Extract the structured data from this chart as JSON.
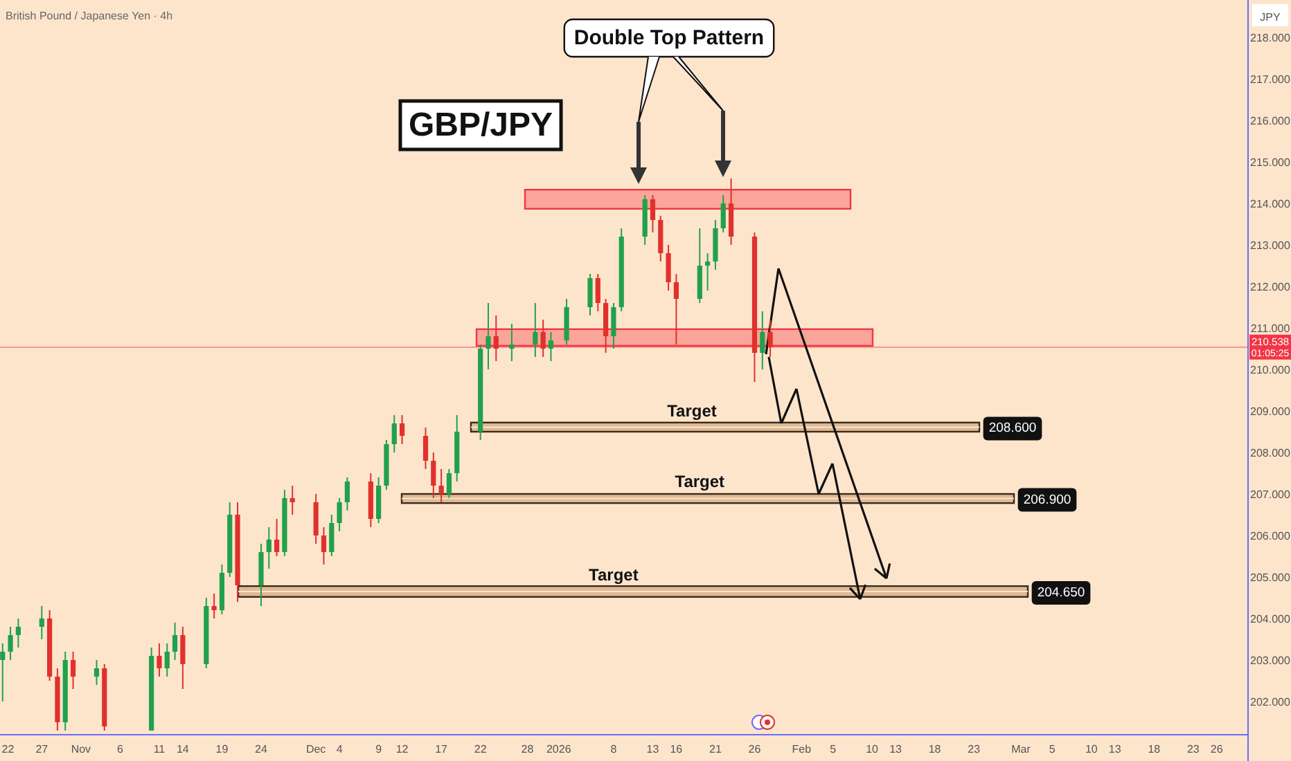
{
  "chart_data": {
    "type": "candlestick",
    "title": "British Pound / Japanese Yen · 4h",
    "ylabel": "JPY",
    "x": [
      "2025-10-22",
      "2025-10-23",
      "2025-10-24",
      "2025-10-27",
      "2025-10-28",
      "2025-10-29",
      "2025-10-30",
      "2025-10-31",
      "2025-11-03",
      "2025-11-04",
      "2025-11-10",
      "2025-11-11",
      "2025-11-12",
      "2025-11-13",
      "2025-11-14",
      "2025-11-17",
      "2025-11-18",
      "2025-11-19",
      "2025-11-20",
      "2025-11-21",
      "2025-11-24",
      "2025-11-25",
      "2025-11-26",
      "2025-11-27",
      "2025-11-28",
      "2025-12-01",
      "2025-12-02",
      "2025-12-03",
      "2025-12-04",
      "2025-12-05",
      "2025-12-08",
      "2025-12-09",
      "2025-12-10",
      "2025-12-11",
      "2025-12-12",
      "2025-12-15",
      "2025-12-16",
      "2025-12-17",
      "2025-12-18",
      "2025-12-19",
      "2025-12-22",
      "2025-12-23",
      "2025-12-24",
      "2025-12-26",
      "2025-12-29",
      "2025-12-30",
      "2025-12-31",
      "2026-01-02",
      "2026-01-05",
      "2026-01-06",
      "2026-01-07",
      "2026-01-08",
      "2026-01-09",
      "2026-01-12",
      "2026-01-13",
      "2026-01-14",
      "2026-01-15",
      "2026-01-16",
      "2026-01-19",
      "2026-01-20",
      "2026-01-21",
      "2026-01-22",
      "2026-01-23",
      "2026-01-26",
      "2026-01-27",
      "2026-01-28"
    ],
    "ohlc": [
      [
        203.0,
        203.4,
        202.0,
        203.2
      ],
      [
        203.2,
        203.8,
        203.0,
        203.6
      ],
      [
        203.6,
        204.0,
        203.3,
        203.8
      ],
      [
        203.8,
        204.3,
        203.5,
        204.0
      ],
      [
        204.0,
        204.2,
        202.5,
        202.6
      ],
      [
        202.6,
        202.8,
        201.3,
        201.5
      ],
      [
        201.5,
        203.2,
        201.3,
        203.0
      ],
      [
        203.0,
        203.2,
        202.3,
        202.6
      ],
      [
        202.6,
        203.0,
        202.4,
        202.8
      ],
      [
        202.8,
        202.9,
        201.3,
        201.4
      ],
      [
        201.3,
        203.3,
        201.3,
        203.1
      ],
      [
        203.1,
        203.4,
        202.6,
        202.8
      ],
      [
        202.8,
        203.4,
        202.6,
        203.2
      ],
      [
        203.2,
        203.9,
        203.0,
        203.6
      ],
      [
        203.6,
        203.8,
        202.3,
        202.9
      ],
      [
        202.9,
        204.5,
        202.8,
        204.3
      ],
      [
        204.3,
        204.6,
        204.0,
        204.2
      ],
      [
        204.2,
        205.3,
        204.1,
        205.1
      ],
      [
        205.1,
        206.8,
        205.0,
        206.5
      ],
      [
        206.5,
        206.8,
        204.4,
        204.8
      ],
      [
        204.8,
        205.8,
        204.3,
        205.6
      ],
      [
        205.6,
        206.2,
        205.2,
        205.9
      ],
      [
        205.9,
        206.4,
        205.5,
        205.6
      ],
      [
        205.6,
        207.1,
        205.5,
        206.9
      ],
      [
        206.9,
        207.2,
        206.5,
        206.8
      ],
      [
        206.8,
        207.0,
        205.8,
        206.0
      ],
      [
        206.0,
        206.2,
        205.3,
        205.6
      ],
      [
        205.6,
        206.5,
        205.5,
        206.3
      ],
      [
        206.3,
        206.9,
        206.1,
        206.8
      ],
      [
        206.8,
        207.4,
        206.6,
        207.3
      ],
      [
        207.3,
        207.5,
        206.2,
        206.4
      ],
      [
        206.4,
        207.4,
        206.3,
        207.2
      ],
      [
        207.2,
        208.3,
        207.1,
        208.2
      ],
      [
        208.2,
        208.9,
        208.0,
        208.7
      ],
      [
        208.7,
        208.9,
        208.2,
        208.4
      ],
      [
        208.4,
        208.6,
        207.6,
        207.8
      ],
      [
        207.8,
        208.0,
        206.9,
        207.2
      ],
      [
        207.2,
        207.6,
        206.8,
        207.0
      ],
      [
        207.0,
        207.6,
        206.9,
        207.5
      ],
      [
        207.5,
        208.9,
        207.3,
        208.5
      ],
      [
        208.5,
        210.6,
        208.3,
        210.5
      ],
      [
        210.5,
        211.6,
        210.0,
        210.8
      ],
      [
        210.8,
        211.3,
        210.2,
        210.5
      ],
      [
        210.5,
        211.1,
        210.2,
        210.6
      ],
      [
        210.6,
        211.6,
        210.3,
        210.9
      ],
      [
        210.9,
        211.2,
        210.3,
        210.5
      ],
      [
        210.5,
        210.9,
        210.2,
        210.7
      ],
      [
        210.7,
        211.7,
        210.6,
        211.5
      ],
      [
        211.5,
        212.3,
        211.3,
        212.2
      ],
      [
        212.2,
        212.3,
        211.4,
        211.6
      ],
      [
        211.6,
        211.7,
        210.4,
        210.8
      ],
      [
        210.8,
        211.6,
        210.5,
        211.5
      ],
      [
        211.5,
        213.4,
        211.4,
        213.2
      ],
      [
        213.2,
        214.2,
        213.0,
        214.1
      ],
      [
        214.1,
        214.2,
        213.3,
        213.6
      ],
      [
        213.6,
        213.7,
        212.6,
        212.8
      ],
      [
        212.8,
        213.0,
        211.9,
        212.1
      ],
      [
        212.1,
        212.3,
        210.6,
        211.7
      ],
      [
        211.7,
        213.4,
        211.6,
        212.5
      ],
      [
        212.5,
        212.8,
        211.9,
        212.6
      ],
      [
        212.6,
        213.6,
        212.4,
        213.4
      ],
      [
        213.4,
        214.2,
        213.3,
        214.0
      ],
      [
        214.0,
        214.6,
        213.0,
        213.2
      ],
      [
        213.2,
        213.3,
        209.7,
        210.4
      ],
      [
        210.4,
        211.4,
        210.0,
        210.9
      ],
      [
        210.9,
        211.2,
        210.3,
        210.538
      ]
    ],
    "xlim": [
      "2025-10-21T16:00",
      "2026-03-30"
    ],
    "xticks": [
      {
        "value": "2025-10-22",
        "label": "22"
      },
      {
        "value": "2025-10-27",
        "label": "27"
      },
      {
        "value": "2025-11-01",
        "label": "Nov"
      },
      {
        "value": "2025-11-06",
        "label": "6"
      },
      {
        "value": "2025-11-11",
        "label": "11"
      },
      {
        "value": "2025-11-14",
        "label": "14"
      },
      {
        "value": "2025-11-19",
        "label": "19"
      },
      {
        "value": "2025-11-24",
        "label": "24"
      },
      {
        "value": "2025-12-01",
        "label": "Dec"
      },
      {
        "value": "2025-12-04",
        "label": "4"
      },
      {
        "value": "2025-12-09",
        "label": "9"
      },
      {
        "value": "2025-12-12",
        "label": "12"
      },
      {
        "value": "2025-12-17",
        "label": "17"
      },
      {
        "value": "2025-12-22",
        "label": "22"
      },
      {
        "value": "2025-12-28",
        "label": "28"
      },
      {
        "value": "2026-01-01",
        "label": "2026"
      },
      {
        "value": "2026-01-08",
        "label": "8"
      },
      {
        "value": "2026-01-13",
        "label": "13"
      },
      {
        "value": "2026-01-16",
        "label": "16"
      },
      {
        "value": "2026-01-21",
        "label": "21"
      },
      {
        "value": "2026-01-26",
        "label": "26"
      },
      {
        "value": "2026-02-01",
        "label": "Feb"
      },
      {
        "value": "2026-02-05",
        "label": "5"
      },
      {
        "value": "2026-02-10",
        "label": "10"
      },
      {
        "value": "2026-02-13",
        "label": "13"
      },
      {
        "value": "2026-02-18",
        "label": "18"
      },
      {
        "value": "2026-02-23",
        "label": "23"
      },
      {
        "value": "2026-03-01",
        "label": "Mar"
      },
      {
        "value": "2026-03-05",
        "label": "5"
      },
      {
        "value": "2026-03-10",
        "label": "10"
      },
      {
        "value": "2026-03-13",
        "label": "13"
      },
      {
        "value": "2026-03-18",
        "label": "18"
      },
      {
        "value": "2026-03-23",
        "label": "23"
      },
      {
        "value": "2026-03-26",
        "label": "26"
      }
    ],
    "ylim": [
      201.2,
      218.9
    ],
    "yticks": [
      {
        "value": 202,
        "label": "202.000"
      },
      {
        "value": 203,
        "label": "203.000"
      },
      {
        "value": 204,
        "label": "204.000"
      },
      {
        "value": 205,
        "label": "205.000"
      },
      {
        "value": 206,
        "label": "206.000"
      },
      {
        "value": 207,
        "label": "207.000"
      },
      {
        "value": 208,
        "label": "208.000"
      },
      {
        "value": 209,
        "label": "209.000"
      },
      {
        "value": 210,
        "label": "210.000"
      },
      {
        "value": 211,
        "label": "211.000"
      },
      {
        "value": 212,
        "label": "212.000"
      },
      {
        "value": 213,
        "label": "213.000"
      },
      {
        "value": 214,
        "label": "214.000"
      },
      {
        "value": 215,
        "label": "215.000"
      },
      {
        "value": 216,
        "label": "216.000"
      },
      {
        "value": 217,
        "label": "217.000"
      },
      {
        "value": 218,
        "label": "218.000"
      }
    ],
    "ref_lines": [
      {
        "axis": "y",
        "value": 210.538,
        "label": "210.538",
        "color": "#f23645"
      }
    ],
    "bands": [
      {
        "axis": "y",
        "from": 213.87,
        "to": 214.33,
        "color": "#f89a8f"
      },
      {
        "axis": "y",
        "from": 210.57,
        "to": 210.97,
        "color": "#f89a8f"
      },
      {
        "axis": "y",
        "from": 208.5,
        "to": 208.72,
        "label": "208.600",
        "color": "#dcb48e"
      },
      {
        "axis": "y",
        "from": 206.78,
        "to": 207.0,
        "label": "206.900",
        "color": "#dcb48e"
      },
      {
        "axis": "y",
        "from": 204.52,
        "to": 204.78,
        "label": "204.650",
        "color": "#dcb48e"
      }
    ],
    "annotations": [
      "Double Top Pattern",
      "GBP/JPY",
      "01:05:25",
      {
        "text": "Target",
        "x": "2026-01-18",
        "y": 208.6
      },
      {
        "text": "Target",
        "x": "2026-01-19",
        "y": 206.9
      },
      {
        "text": "Target",
        "x": "2026-01-08",
        "y": 204.65
      }
    ]
  }
}
